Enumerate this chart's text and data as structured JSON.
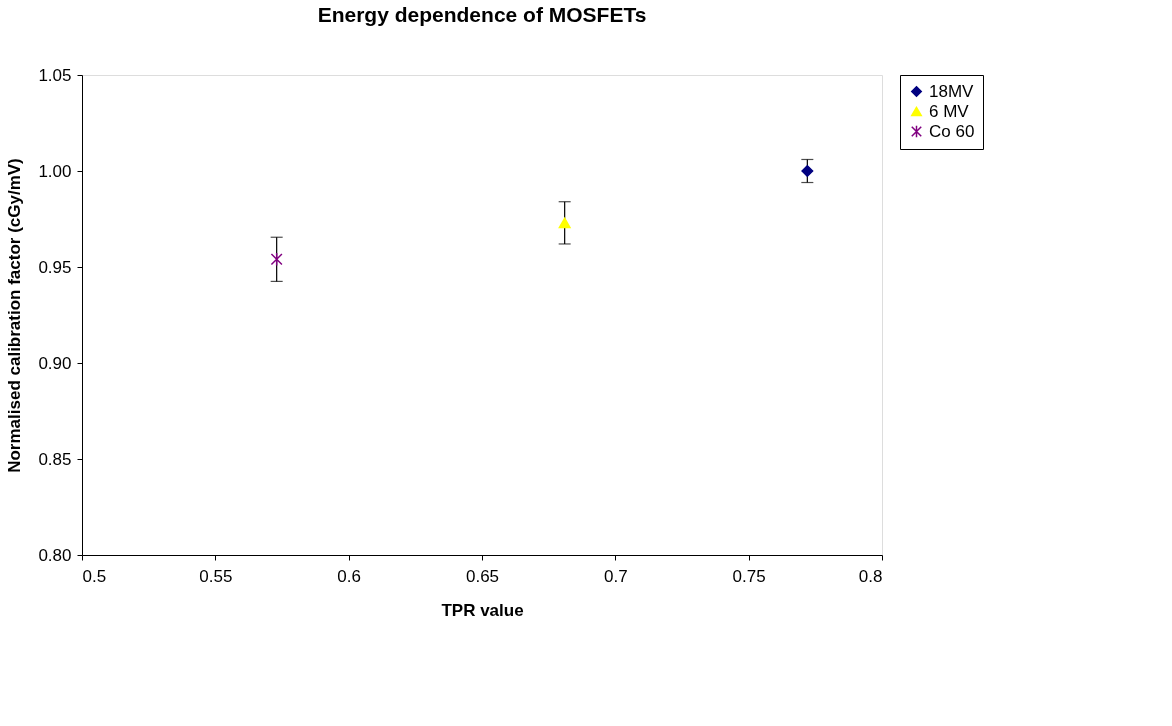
{
  "chart_data": {
    "type": "scatter",
    "title": "Energy dependence of MOSFETs",
    "xlabel": "TPR value",
    "ylabel": "Normalised calibration factor (cGy/mV)",
    "series": [
      {
        "name": "18MV",
        "color": "#000080",
        "marker": "diamond",
        "x": [
          0.772
        ],
        "values": [
          1.0
        ],
        "errors": [
          0.006
        ]
      },
      {
        "name": "6 MV",
        "color": "#ffff00",
        "marker": "triangle",
        "x": [
          0.681
        ],
        "values": [
          0.973
        ],
        "errors": [
          0.011
        ]
      },
      {
        "name": "Co 60",
        "color": "#800080",
        "marker": "cross",
        "x": [
          0.573
        ],
        "values": [
          0.954
        ],
        "errors": [
          0.0115
        ]
      }
    ],
    "xlim": [
      0.5,
      0.8
    ],
    "xticks": [
      0.5,
      0.55,
      0.6,
      0.65,
      0.7,
      0.75,
      0.8
    ],
    "ylim": [
      0.8,
      1.05
    ],
    "yticks": [
      {
        "value": 0.8,
        "label": "0.80"
      },
      0.85,
      {
        "value": 0.9,
        "label": "0.90"
      },
      0.95,
      {
        "value": 1.0,
        "label": "1.00"
      },
      1.05
    ],
    "grid": false,
    "legend": "right"
  }
}
